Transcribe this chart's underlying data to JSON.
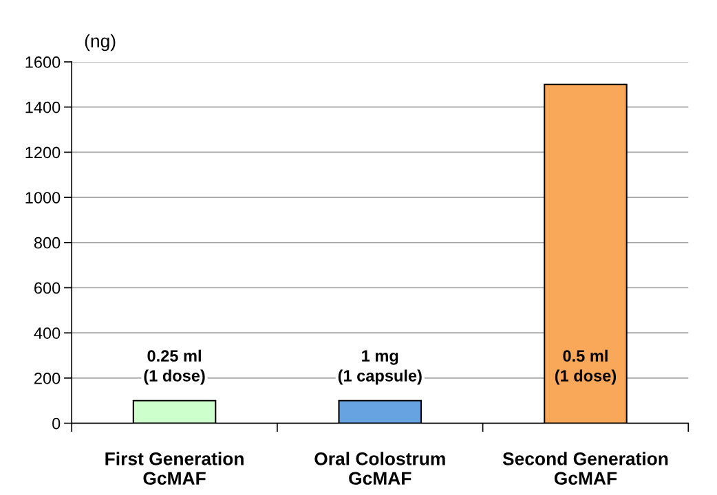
{
  "chart_data": {
    "type": "bar",
    "ylabel": "(ng)",
    "categories": [
      "First Generation\nGcMAF",
      "Oral Colostrum\nGcMAF",
      "Second Generation\nGcMAF"
    ],
    "values": [
      100,
      100,
      1500
    ],
    "colors": [
      "#ccffcc",
      "#66a3e0",
      "#f9a85a"
    ],
    "ylim": [
      0,
      1600
    ],
    "yticks": [
      0,
      200,
      400,
      600,
      800,
      1000,
      1200,
      1400,
      1600
    ],
    "grid": "y",
    "annotations": [
      "0.25 ml\n(1 dose)",
      "1 mg\n(1 capsule)",
      "0.5 ml\n(1 dose)"
    ]
  }
}
